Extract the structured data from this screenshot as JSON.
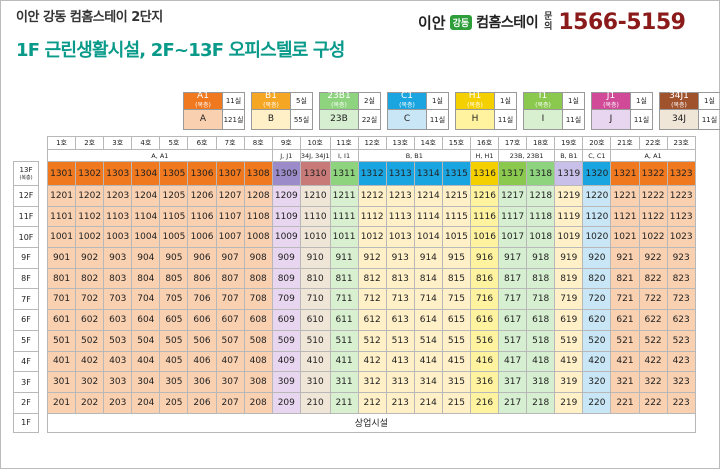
{
  "header": {
    "top_title": "이안 강동 컴홈스테이 2단지",
    "main_title": "1F 근린생활시설, 2F~13F 오피스텔로 구성"
  },
  "brand": {
    "name": "이안",
    "badge": "강동",
    "product": "컴홈스테이",
    "inquiry": [
      "문",
      "의"
    ],
    "phone": "1566-5159"
  },
  "colors": {
    "A": "#f9d0b0",
    "A1": "#f0781e",
    "B": "#fff0c8",
    "B1": "#f5a623",
    "23": "#d6efd0",
    "23B1": "#8ed37e",
    "C": "#c8e6f5",
    "C1": "#1aa5e0",
    "H": "#fff3a0",
    "H1": "#f5d000",
    "I": "#d8f0d0",
    "I1": "#8ac84e",
    "J": "#e8d6f0",
    "J1": "#d04a98",
    "34J": "#f0e6d8",
    "34J1": "#a0522d",
    "CUI": "#9b8cc9",
    "LIJ": "#c87a78",
    "CU": "#c8c0e8"
  },
  "legend": [
    {
      "code": "A1",
      "sub": "(복층)",
      "count1": "11실",
      "code2": "A",
      "count2": "121실",
      "key1": "A1",
      "key2": "A"
    },
    {
      "code": "B1",
      "sub": "(복층)",
      "count1": "5실",
      "code2": "B",
      "count2": "55실",
      "key1": "B1",
      "key2": "B"
    },
    {
      "code": "23B1",
      "sub": "(복층)",
      "count1": "2실",
      "code2": "23B",
      "count2": "22실",
      "key1": "23B1",
      "key2": "23"
    },
    {
      "code": "C1",
      "sub": "(복층)",
      "count1": "1실",
      "code2": "C",
      "count2": "11실",
      "key1": "C1",
      "key2": "C"
    },
    {
      "code": "H1",
      "sub": "(복층)",
      "count1": "1실",
      "code2": "H",
      "count2": "11실",
      "key1": "H1",
      "key2": "H"
    },
    {
      "code": "I1",
      "sub": "(복층)",
      "count1": "1실",
      "code2": "I",
      "count2": "11실",
      "key1": "I1",
      "key2": "I"
    },
    {
      "code": "J1",
      "sub": "(복층)",
      "count1": "1실",
      "code2": "J",
      "count2": "11실",
      "key1": "J1",
      "key2": "J"
    },
    {
      "code": "34J1",
      "sub": "(복층)",
      "count1": "1실",
      "code2": "34J",
      "count2": "11실",
      "key1": "34J1",
      "key2": "34J"
    }
  ],
  "unit_numbers": [
    "1호",
    "2호",
    "3호",
    "4호",
    "5호",
    "6호",
    "7호",
    "8호",
    "9호",
    "10호",
    "11호",
    "12호",
    "13호",
    "14호",
    "15호",
    "16호",
    "17호",
    "18호",
    "19호",
    "20호",
    "21호",
    "22호",
    "23호"
  ],
  "type_headers": [
    {
      "label": "A, A1",
      "span": 8
    },
    {
      "label": "J, J1",
      "span": 1
    },
    {
      "label": "34J, 34J1",
      "span": 1
    },
    {
      "label": "I, I1",
      "span": 1
    },
    {
      "label": "B, B1",
      "span": 4
    },
    {
      "label": "H, H1",
      "span": 1
    },
    {
      "label": "23B, 23B1",
      "span": 2
    },
    {
      "label": "B, B1",
      "span": 1
    },
    {
      "label": "C, C1",
      "span": 1
    },
    {
      "label": "A, A1",
      "span": 3
    }
  ],
  "column_types": [
    "A",
    "A",
    "A",
    "A",
    "A",
    "A",
    "A",
    "A",
    "J",
    "34J",
    "I",
    "B",
    "B",
    "B",
    "B",
    "H",
    "23",
    "23",
    "B",
    "C",
    "A",
    "A",
    "A"
  ],
  "duplex_colors": [
    "A1",
    "A1",
    "A1",
    "A1",
    "A1",
    "A1",
    "A1",
    "A1",
    "CUI",
    "LIJ",
    "23B1",
    "C1",
    "C1",
    "C1",
    "C1",
    "H1",
    "I1",
    "23B1",
    "CU",
    "C1",
    "A1",
    "A1",
    "A1"
  ],
  "floors": [
    "13F",
    "12F",
    "11F",
    "10F",
    "9F",
    "8F",
    "7F",
    "6F",
    "5F",
    "4F",
    "3F",
    "2F",
    "1F"
  ],
  "floor13_sub": "(복층)",
  "ground_floor_label": "상업시설",
  "rows": {
    "13F": [
      "1301",
      "1302",
      "1303",
      "1304",
      "1305",
      "1306",
      "1307",
      "1308",
      "1309",
      "1310",
      "1311",
      "1312",
      "1313",
      "1314",
      "1315",
      "1316",
      "1317",
      "1318",
      "1319",
      "1320",
      "1321",
      "1322",
      "1323"
    ],
    "12F": [
      "1201",
      "1202",
      "1203",
      "1204",
      "1205",
      "1206",
      "1207",
      "1208",
      "1209",
      "1210",
      "1211",
      "1212",
      "1213",
      "1214",
      "1215",
      "1216",
      "1217",
      "1218",
      "1219",
      "1220",
      "1221",
      "1222",
      "1223"
    ],
    "11F": [
      "1101",
      "1102",
      "1103",
      "1104",
      "1105",
      "1106",
      "1107",
      "1108",
      "1109",
      "1110",
      "1111",
      "1112",
      "1113",
      "1114",
      "1115",
      "1116",
      "1117",
      "1118",
      "1119",
      "1120",
      "1121",
      "1122",
      "1123"
    ],
    "10F": [
      "1001",
      "1002",
      "1003",
      "1004",
      "1005",
      "1006",
      "1007",
      "1008",
      "1009",
      "1010",
      "1011",
      "1012",
      "1013",
      "1014",
      "1015",
      "1016",
      "1017",
      "1018",
      "1019",
      "1020",
      "1021",
      "1022",
      "1023"
    ],
    "9F": [
      "901",
      "902",
      "903",
      "904",
      "905",
      "906",
      "907",
      "908",
      "909",
      "910",
      "911",
      "912",
      "913",
      "914",
      "915",
      "916",
      "917",
      "918",
      "919",
      "920",
      "921",
      "922",
      "923"
    ],
    "8F": [
      "801",
      "802",
      "803",
      "804",
      "805",
      "806",
      "807",
      "808",
      "809",
      "810",
      "811",
      "812",
      "813",
      "814",
      "815",
      "816",
      "817",
      "818",
      "819",
      "820",
      "821",
      "822",
      "823"
    ],
    "7F": [
      "701",
      "702",
      "703",
      "704",
      "705",
      "706",
      "707",
      "708",
      "709",
      "710",
      "711",
      "712",
      "713",
      "714",
      "715",
      "716",
      "717",
      "718",
      "719",
      "720",
      "721",
      "722",
      "723"
    ],
    "6F": [
      "601",
      "602",
      "603",
      "604",
      "605",
      "606",
      "607",
      "608",
      "609",
      "610",
      "611",
      "612",
      "613",
      "614",
      "615",
      "616",
      "617",
      "618",
      "619",
      "620",
      "621",
      "622",
      "623"
    ],
    "5F": [
      "501",
      "502",
      "503",
      "504",
      "505",
      "506",
      "507",
      "508",
      "509",
      "510",
      "511",
      "512",
      "513",
      "514",
      "515",
      "516",
      "517",
      "518",
      "519",
      "520",
      "521",
      "522",
      "523"
    ],
    "4F": [
      "401",
      "402",
      "403",
      "404",
      "405",
      "406",
      "407",
      "408",
      "409",
      "410",
      "411",
      "412",
      "413",
      "414",
      "415",
      "416",
      "417",
      "418",
      "419",
      "420",
      "421",
      "422",
      "423"
    ],
    "3F": [
      "301",
      "302",
      "303",
      "304",
      "305",
      "306",
      "307",
      "308",
      "309",
      "310",
      "311",
      "312",
      "313",
      "314",
      "315",
      "316",
      "317",
      "318",
      "319",
      "320",
      "321",
      "322",
      "323"
    ],
    "2F": [
      "201",
      "202",
      "203",
      "204",
      "205",
      "206",
      "207",
      "208",
      "209",
      "210",
      "211",
      "212",
      "213",
      "214",
      "215",
      "216",
      "217",
      "218",
      "219",
      "220",
      "221",
      "222",
      "223"
    ]
  }
}
